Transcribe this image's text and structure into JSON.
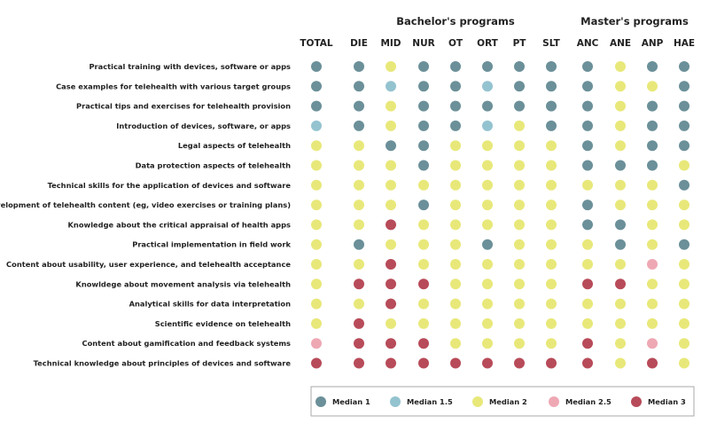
{
  "chart_data": {
    "type": "heatmap",
    "title": "",
    "column_groups": [
      {
        "name": "Bachelor's programs",
        "columns": [
          "DIE",
          "MID",
          "NUR",
          "OT",
          "ORT",
          "PT",
          "SLT"
        ]
      },
      {
        "name": "Master's programs",
        "columns": [
          "ANC",
          "ANE",
          "ANP",
          "HAE"
        ]
      }
    ],
    "columns": [
      "TOTAL",
      "DIE",
      "MID",
      "NUR",
      "OT",
      "ORT",
      "PT",
      "SLT",
      "ANC",
      "ANE",
      "ANP",
      "HAE"
    ],
    "rows": [
      "Practical training with devices, software or apps",
      "Case examples for telehealth with various target groups",
      "Practical tips and exercises for telehealth provision",
      "Introduction of devices, software, or apps",
      "Legal aspects of telehealth",
      "Data protection aspects of telehealth",
      "Technical skills for the application of devices and software",
      "Development of telehealth content (eg, video exercises or training plans)",
      "Knowledge about the critical appraisal of health apps",
      "Practical implementation in field work",
      "Content about usability, user experience, and telehealth acceptance",
      "Knowldege about movement analysis via telehealth",
      "Analytical skills for data interpretation",
      "Scientific evidence on telehealth",
      "Content about gamification and feedback systems",
      "Technical knowledge about principles of devices and software"
    ],
    "values": [
      [
        1,
        1,
        2,
        1,
        1,
        1,
        1,
        1,
        1,
        2,
        1,
        1
      ],
      [
        1,
        1,
        1.5,
        1,
        1,
        1.5,
        1,
        1,
        1,
        2,
        2,
        1
      ],
      [
        1,
        1,
        2,
        1,
        1,
        1,
        1,
        1,
        1,
        2,
        1,
        1
      ],
      [
        1.5,
        1,
        2,
        1,
        1,
        1.5,
        2,
        1,
        1,
        2,
        1,
        1
      ],
      [
        2,
        2,
        1,
        1,
        2,
        2,
        2,
        2,
        1,
        2,
        1,
        1
      ],
      [
        2,
        2,
        2,
        1,
        2,
        2,
        2,
        2,
        1,
        1,
        1,
        2
      ],
      [
        2,
        2,
        2,
        2,
        2,
        2,
        2,
        2,
        2,
        2,
        2,
        1
      ],
      [
        2,
        2,
        2,
        1,
        2,
        2,
        2,
        2,
        1,
        2,
        2,
        2
      ],
      [
        2,
        2,
        3,
        2,
        2,
        2,
        2,
        2,
        1,
        1,
        2,
        2
      ],
      [
        2,
        1,
        2,
        2,
        2,
        1,
        2,
        2,
        2,
        1,
        2,
        1
      ],
      [
        2,
        2,
        3,
        2,
        2,
        2,
        2,
        2,
        2,
        2,
        2.5,
        2
      ],
      [
        2,
        3,
        3,
        3,
        2,
        2,
        2,
        2,
        3,
        3,
        2,
        2
      ],
      [
        2,
        2,
        3,
        2,
        2,
        2,
        2,
        2,
        2,
        2,
        2,
        2
      ],
      [
        2,
        3,
        2,
        2,
        2,
        2,
        2,
        2,
        2,
        2,
        2,
        2
      ],
      [
        2.5,
        3,
        3,
        3,
        2,
        2,
        2,
        2,
        3,
        2,
        2.5,
        2
      ],
      [
        3,
        3,
        3,
        3,
        3,
        3,
        3,
        3,
        3,
        2,
        3,
        2
      ]
    ],
    "legend": [
      {
        "label": "Median 1",
        "value": 1,
        "color": "#6b9099"
      },
      {
        "label": "Median 1.5",
        "value": 1.5,
        "color": "#94c3d0"
      },
      {
        "label": "Median 2",
        "value": 2,
        "color": "#e8e87a"
      },
      {
        "label": "Median 2.5",
        "value": 2.5,
        "color": "#eea8b4"
      },
      {
        "label": "Median 3",
        "value": 3,
        "color": "#b84b59"
      }
    ],
    "legend_position": "bottom-right"
  }
}
